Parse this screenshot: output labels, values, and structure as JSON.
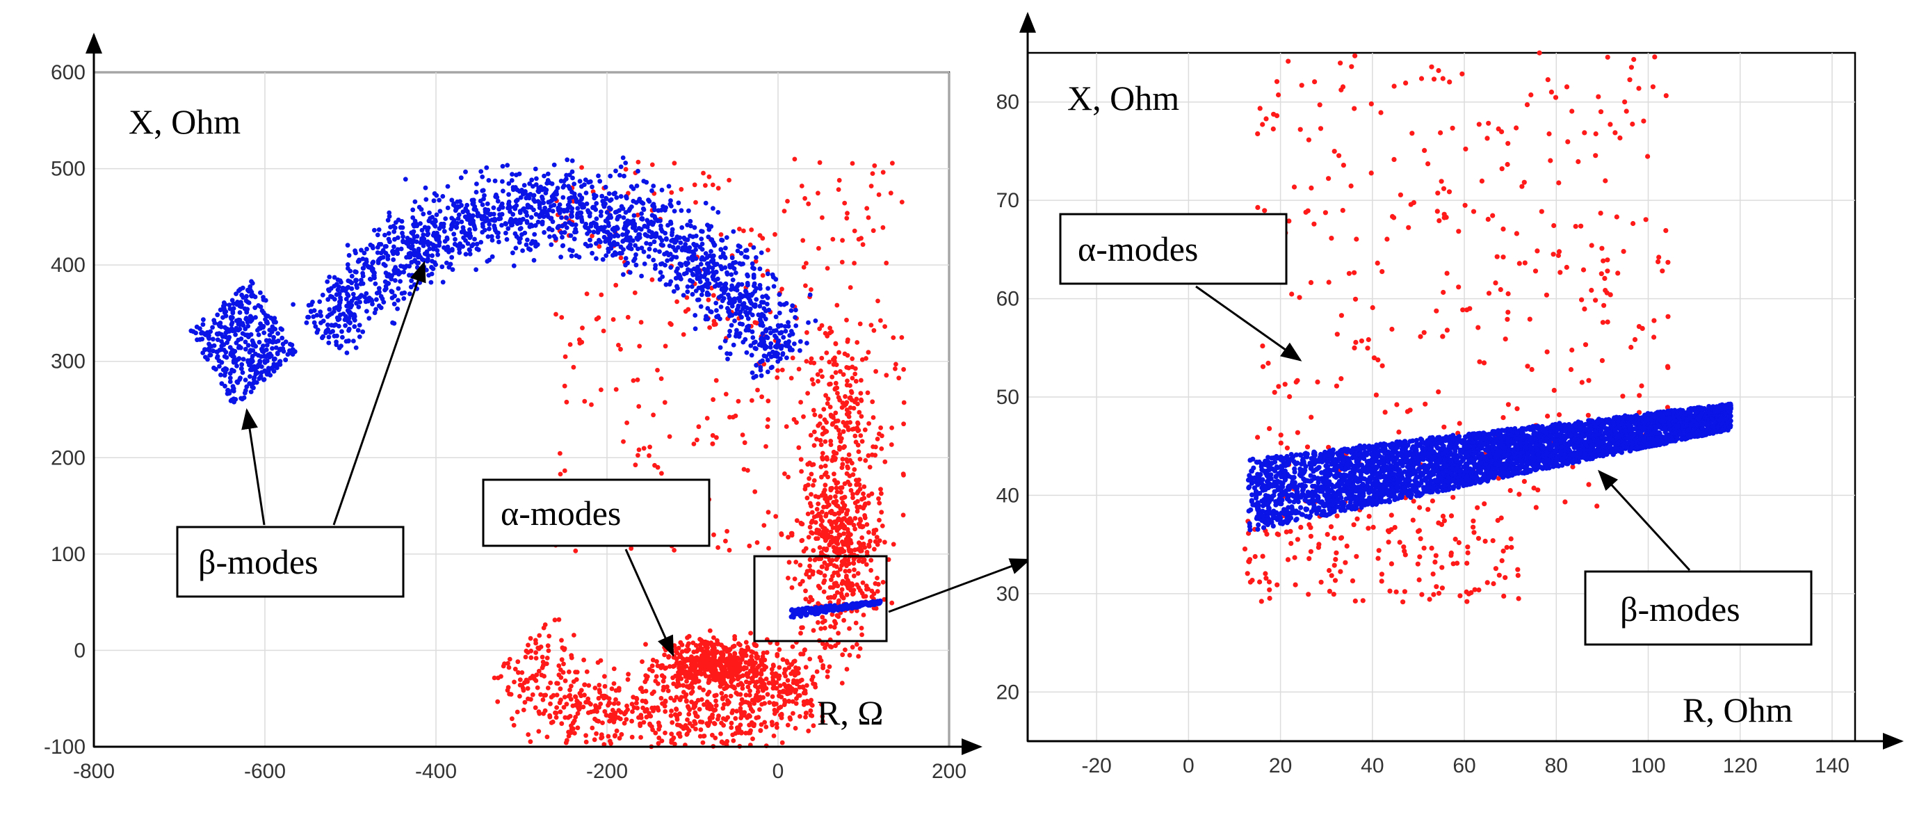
{
  "colors": {
    "alpha": "#ff1a1a",
    "beta": "#0a14e6",
    "grid": "#dcdcdc",
    "axis": "#000000"
  },
  "chart_data": [
    {
      "type": "scatter",
      "title": "",
      "xlabel": "R, Ω",
      "ylabel": "X, Ohm",
      "xlim": [
        -800,
        200
      ],
      "ylim": [
        -100,
        600
      ],
      "xticks": [
        "-800",
        "-600",
        "-400",
        "-200",
        "0",
        "200"
      ],
      "xtick_values": [
        -800,
        -600,
        -400,
        -200,
        0,
        200
      ],
      "yticks": [
        "-100",
        "0",
        "100",
        "200",
        "300",
        "400",
        "500",
        "600"
      ],
      "ytick_values": [
        -100,
        0,
        100,
        200,
        300,
        400,
        500,
        600
      ],
      "grid": true,
      "series": [
        {
          "name": "α-modes",
          "color": "#ff1a1a",
          "regions": [
            {
              "shape": "arc",
              "center": [
                -90,
                180
              ],
              "radius": 280,
              "thickness": 70,
              "from_deg": 220,
              "to_deg": 250,
              "count": 260
            },
            {
              "shape": "arc",
              "center": [
                -90,
                180
              ],
              "radius": 250,
              "thickness": 60,
              "from_deg": 250,
              "to_deg": 300,
              "count": 450
            },
            {
              "shape": "arc",
              "center": [
                -90,
                180
              ],
              "radius": 230,
              "thickness": 50,
              "from_deg": 300,
              "to_deg": 330,
              "count": 80
            },
            {
              "shape": "cluster",
              "center": [
                -70,
                -15
              ],
              "spread": [
                45,
                18
              ],
              "count": 500
            },
            {
              "shape": "cluster",
              "center": [
                70,
                110
              ],
              "spread": [
                30,
                50
              ],
              "count": 380
            },
            {
              "shape": "cluster",
              "center": [
                75,
                230
              ],
              "spread": [
                30,
                70
              ],
              "count": 200
            },
            {
              "shape": "scatter",
              "xrange": [
                -260,
                150
              ],
              "yrange": [
                100,
                510
              ],
              "count": 380
            }
          ]
        },
        {
          "name": "β-modes",
          "color": "#0a14e6",
          "regions": [
            {
              "shape": "arc",
              "center": [
                -270,
                140
              ],
              "radius": 320,
              "thickness": 60,
              "from_deg": 30,
              "to_deg": 145,
              "count": 1700
            },
            {
              "shape": "diamond",
              "center": [
                -625,
                320
              ],
              "size": [
                45,
                48
              ],
              "count": 400
            },
            {
              "shape": "band",
              "x_from": 15,
              "x_to": 120,
              "y_from": 38,
              "y_to": 50,
              "width": 9,
              "count": 250
            }
          ]
        }
      ],
      "annotations": [
        {
          "text": "β-modes",
          "targets": [
            "diamond",
            "crescent"
          ]
        },
        {
          "text": "α-modes",
          "targets": [
            "lower-arc"
          ]
        }
      ],
      "inset_box": {
        "xrange": [
          -10,
          140
        ],
        "yrange": [
          20,
          85
        ]
      }
    },
    {
      "type": "scatter",
      "title": "",
      "xlabel": "R, Ohm",
      "ylabel": "X, Ohm",
      "xlim": [
        -35,
        145
      ],
      "ylim": [
        15,
        85
      ],
      "xticks": [
        "-20",
        "0",
        "20",
        "40",
        "60",
        "80",
        "100",
        "120",
        "140"
      ],
      "xtick_values": [
        -20,
        0,
        20,
        40,
        60,
        80,
        100,
        120,
        140
      ],
      "yticks": [
        "20",
        "30",
        "40",
        "50",
        "60",
        "70",
        "80"
      ],
      "ytick_values": [
        20,
        30,
        40,
        50,
        60,
        70,
        80
      ],
      "grid": true,
      "series": [
        {
          "name": "α-modes",
          "color": "#ff1a1a",
          "regions": [
            {
              "shape": "scatter",
              "xrange": [
                15,
                105
              ],
              "yrange": [
                45,
                85
              ],
              "count": 300
            },
            {
              "shape": "scatter",
              "xrange": [
                12,
                72
              ],
              "yrange": [
                29,
                38
              ],
              "count": 150
            },
            {
              "shape": "scatter",
              "xrange": [
                20,
                90
              ],
              "yrange": [
                38,
                45
              ],
              "count": 60
            }
          ]
        },
        {
          "name": "β-modes",
          "color": "#0a14e6",
          "regions": [
            {
              "shape": "band",
              "x_from": 13,
              "x_to": 118,
              "y_from": 40,
              "y_to": 48,
              "width": 7.5,
              "count": 4200
            }
          ]
        }
      ],
      "annotations": [
        {
          "text": "α-modes",
          "targets": [
            "upper-scatter"
          ]
        },
        {
          "text": "β-modes",
          "targets": [
            "blue-band"
          ]
        }
      ]
    }
  ]
}
